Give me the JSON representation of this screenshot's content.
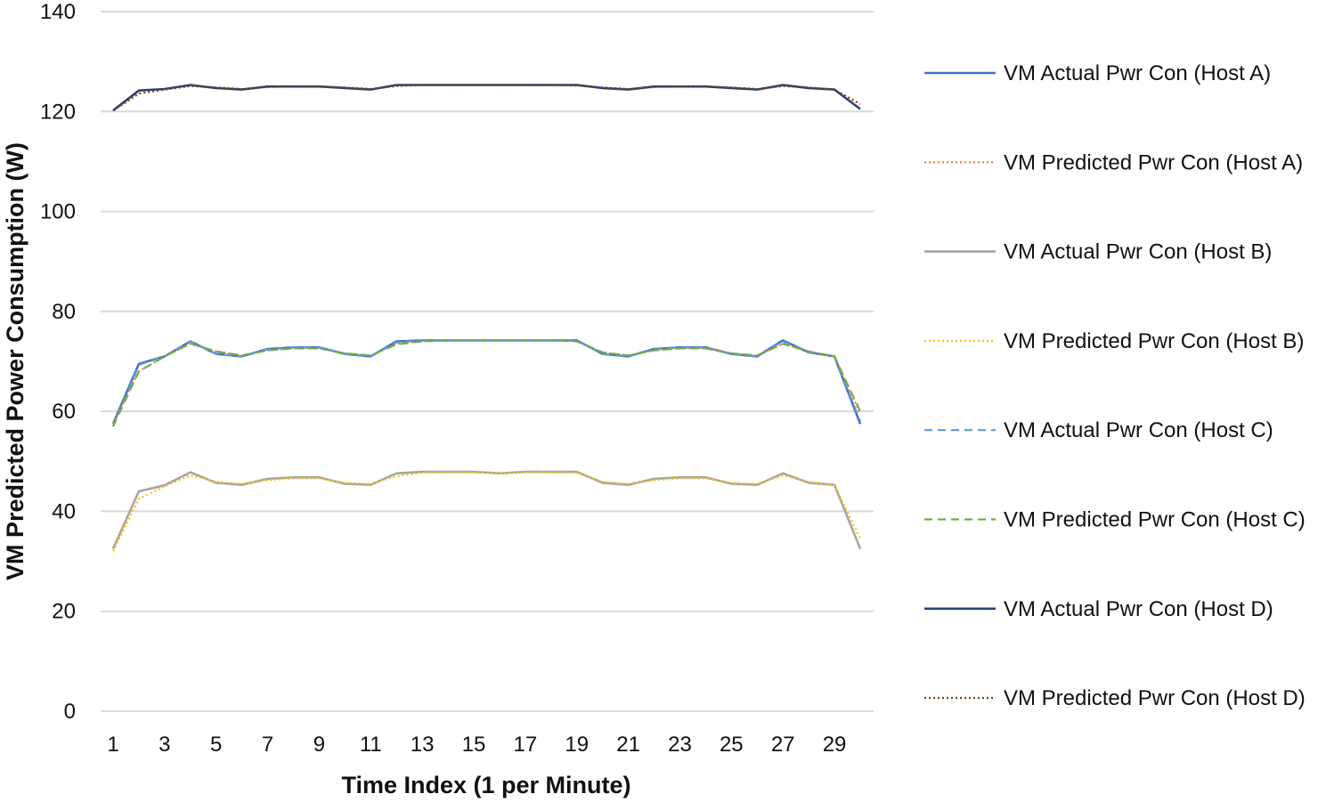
{
  "chart_data": {
    "type": "line",
    "title": "",
    "xlabel": "Time Index (1 per Minute)",
    "ylabel": "VM Predicted Power Consumption (W)",
    "ylim": [
      0,
      140
    ],
    "yticks": [
      0,
      20,
      40,
      60,
      80,
      100,
      120,
      140
    ],
    "xlim": [
      1,
      30
    ],
    "xticks": [
      1,
      3,
      5,
      7,
      9,
      11,
      13,
      15,
      17,
      19,
      21,
      23,
      25,
      27,
      29
    ],
    "grid": true,
    "legend_position": "right",
    "x": [
      1,
      2,
      3,
      4,
      5,
      6,
      7,
      8,
      9,
      10,
      11,
      12,
      13,
      14,
      15,
      16,
      17,
      18,
      19,
      20,
      21,
      22,
      23,
      24,
      25,
      26,
      27,
      28,
      29,
      30
    ],
    "series": [
      {
        "name": "VM Actual Pwr Con (Host A)",
        "color": "#4472C4",
        "style": "solid",
        "values": [
          57.5,
          69.5,
          71,
          74,
          71.5,
          71,
          72.5,
          72.8,
          72.8,
          71.5,
          71,
          74,
          74.2,
          74.2,
          74.2,
          74.2,
          74.2,
          74.2,
          74.2,
          71.5,
          71,
          72.5,
          72.8,
          72.8,
          71.5,
          71,
          74.2,
          71.8,
          71,
          57.5
        ]
      },
      {
        "name": "VM Predicted Pwr Con (Host A)",
        "color": "#ED7D31",
        "style": "dotted",
        "values": [
          57.5,
          68,
          71,
          73.5,
          72,
          71.2,
          72.2,
          72.6,
          72.6,
          71.6,
          71.2,
          73.5,
          74,
          74.2,
          74.2,
          74.2,
          74.2,
          74.2,
          74,
          71.8,
          71.2,
          72.2,
          72.6,
          72.6,
          71.6,
          71.2,
          73.5,
          72,
          71,
          59.5
        ]
      },
      {
        "name": "VM Actual Pwr Con (Host B)",
        "color": "#A5A5A5",
        "style": "solid",
        "values": [
          32.5,
          44,
          45.2,
          47.8,
          45.7,
          45.3,
          46.5,
          46.8,
          46.8,
          45.5,
          45.3,
          47.6,
          47.9,
          47.9,
          47.9,
          47.6,
          47.9,
          47.9,
          47.9,
          45.7,
          45.3,
          46.5,
          46.8,
          46.8,
          45.5,
          45.3,
          47.6,
          45.7,
          45.3,
          32.5
        ]
      },
      {
        "name": "VM Predicted Pwr Con (Host B)",
        "color": "#FFC000",
        "style": "dotted",
        "values": [
          32,
          42.5,
          45,
          47.2,
          45.9,
          45.5,
          46.2,
          46.6,
          46.6,
          45.7,
          45.5,
          47,
          47.7,
          47.8,
          47.8,
          47.6,
          47.8,
          47.8,
          47.7,
          45.9,
          45.5,
          46.2,
          46.6,
          46.6,
          45.7,
          45.5,
          47.2,
          45.9,
          45.3,
          34.5
        ]
      },
      {
        "name": "VM Actual Pwr Con (Host C)",
        "color": "#5B9BD5",
        "style": "dashed",
        "values": [
          57,
          69.3,
          71,
          74,
          71.5,
          71,
          72.4,
          72.8,
          72.8,
          71.5,
          71,
          73.8,
          74.2,
          74.2,
          74.2,
          74.2,
          74.2,
          74.2,
          74.2,
          71.5,
          71,
          72.4,
          72.8,
          72.8,
          71.5,
          71,
          74,
          71.8,
          71,
          58
        ]
      },
      {
        "name": "VM Predicted Pwr Con (Host C)",
        "color": "#70AD47",
        "style": "dashed",
        "values": [
          57,
          68,
          71,
          73.6,
          72,
          71.2,
          72.2,
          72.6,
          72.6,
          71.6,
          71.2,
          73.4,
          74,
          74.2,
          74.2,
          74.2,
          74.2,
          74.2,
          74,
          71.8,
          71.2,
          72.2,
          72.6,
          72.6,
          71.6,
          71.2,
          73.5,
          72,
          71,
          60
        ]
      },
      {
        "name": "VM Actual Pwr Con (Host D)",
        "color": "#264478",
        "style": "solid",
        "values": [
          120.2,
          124.2,
          124.5,
          125.3,
          124.7,
          124.4,
          125,
          125,
          125,
          124.7,
          124.4,
          125.3,
          125.3,
          125.3,
          125.3,
          125.3,
          125.3,
          125.3,
          125.3,
          124.7,
          124.4,
          125,
          125,
          125,
          124.7,
          124.4,
          125.3,
          124.7,
          124.4,
          120.5
        ]
      },
      {
        "name": "VM Predicted Pwr Con (Host D)",
        "color": "#843C0C",
        "style": "dotted",
        "values": [
          120.2,
          123.6,
          124.4,
          125.1,
          124.8,
          124.5,
          124.9,
          125,
          125,
          124.8,
          124.5,
          125.1,
          125.3,
          125.3,
          125.3,
          125.3,
          125.3,
          125.3,
          125.2,
          124.8,
          124.5,
          124.9,
          125,
          125,
          124.8,
          124.5,
          125.1,
          124.8,
          124.4,
          121.5
        ]
      }
    ]
  }
}
